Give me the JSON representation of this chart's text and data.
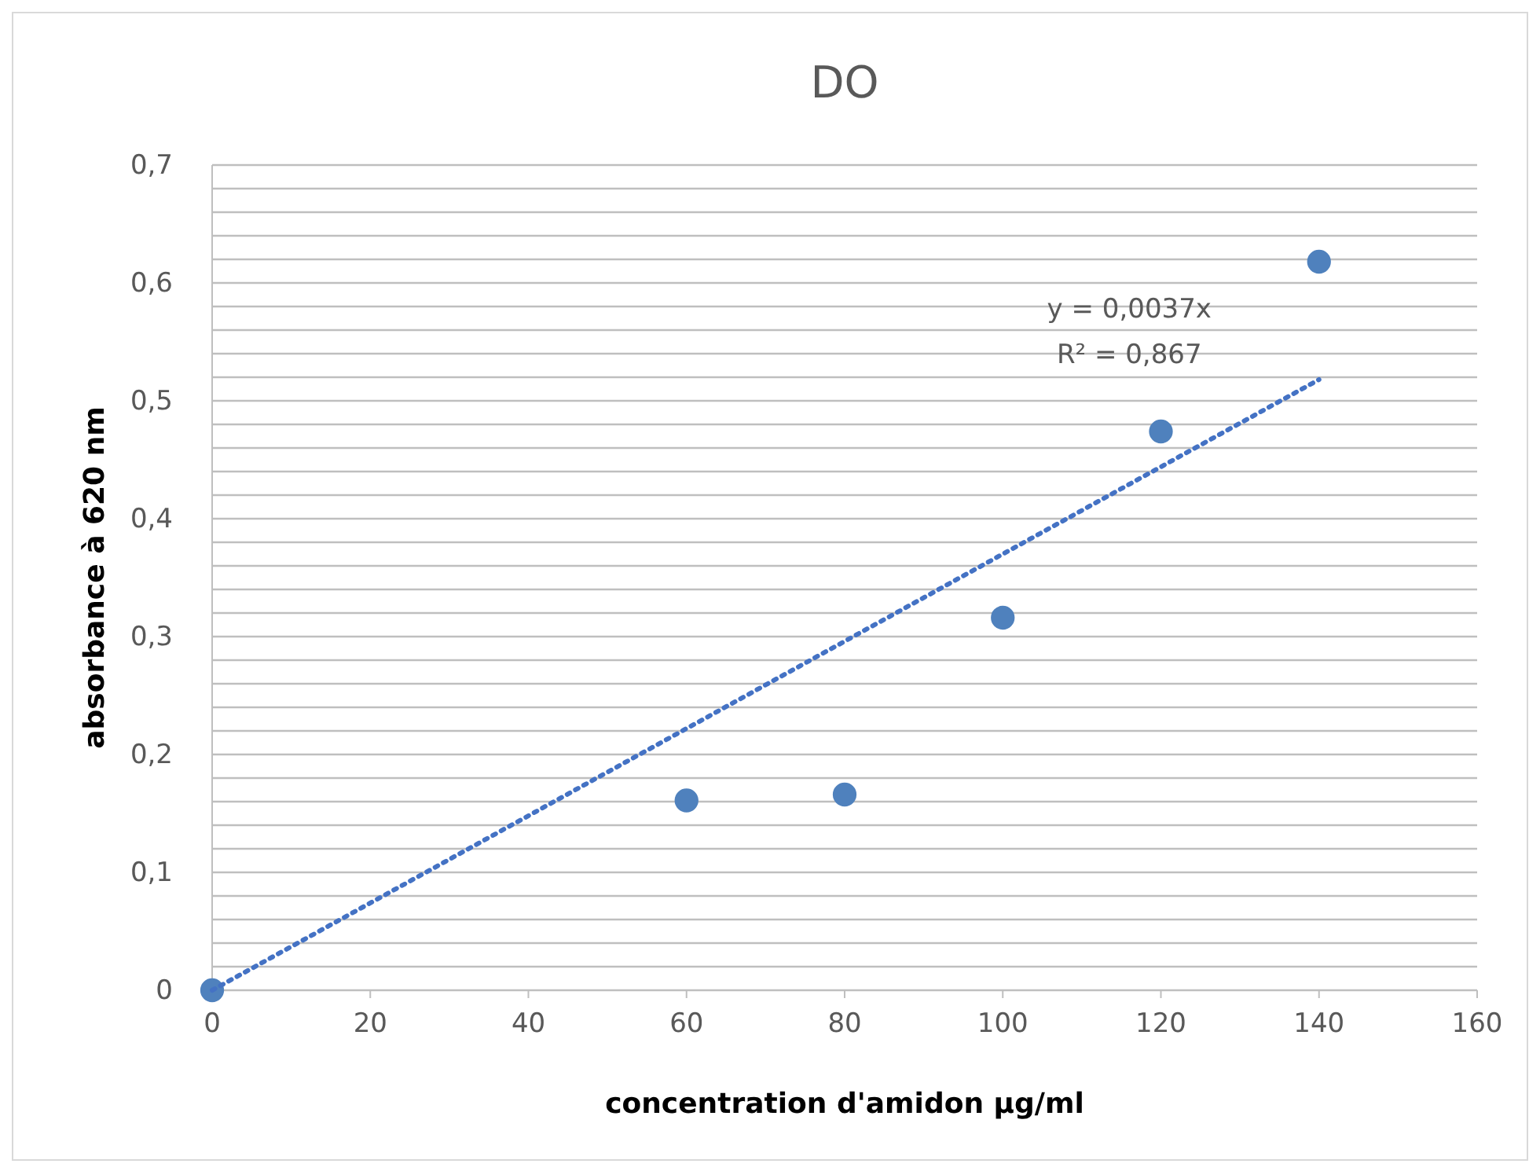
{
  "chart_data": {
    "type": "scatter",
    "title": "DO",
    "xlabel": "concentration d'amidon µg/ml",
    "ylabel": "absorbance à 620 nm",
    "xlim": [
      0,
      160
    ],
    "xticks": [
      0,
      20,
      40,
      60,
      80,
      100,
      120,
      140,
      160
    ],
    "ylim": [
      0,
      0.7
    ],
    "yticks": [
      0,
      {
        "value": 0.02,
        "label": null
      },
      {
        "value": 0.04,
        "label": null
      },
      {
        "value": 0.06,
        "label": null
      },
      {
        "value": 0.08,
        "label": null
      },
      {
        "value": 0.1,
        "label": "0,1"
      },
      {
        "value": 0.12,
        "label": null
      },
      {
        "value": 0.14,
        "label": null
      },
      {
        "value": 0.16,
        "label": null
      },
      {
        "value": 0.18,
        "label": null
      },
      {
        "value": 0.2,
        "label": "0,2"
      },
      {
        "value": 0.22,
        "label": null
      },
      {
        "value": 0.24,
        "label": null
      },
      {
        "value": 0.26,
        "label": null
      },
      {
        "value": 0.28,
        "label": null
      },
      {
        "value": 0.3,
        "label": "0,3"
      },
      {
        "value": 0.32,
        "label": null
      },
      {
        "value": 0.34,
        "label": null
      },
      {
        "value": 0.36,
        "label": null
      },
      {
        "value": 0.38,
        "label": null
      },
      {
        "value": 0.4,
        "label": "0,4"
      },
      {
        "value": 0.42,
        "label": null
      },
      {
        "value": 0.44,
        "label": null
      },
      {
        "value": 0.46,
        "label": null
      },
      {
        "value": 0.48,
        "label": null
      },
      {
        "value": 0.5,
        "label": "0,5"
      },
      {
        "value": 0.52,
        "label": null
      },
      {
        "value": 0.54,
        "label": null
      },
      {
        "value": 0.56,
        "label": null
      },
      {
        "value": 0.58,
        "label": null
      },
      {
        "value": 0.6,
        "label": "0,6"
      },
      {
        "value": 0.62,
        "label": null
      },
      {
        "value": 0.64,
        "label": null
      },
      {
        "value": 0.66,
        "label": null
      },
      {
        "value": 0.68,
        "label": null
      },
      {
        "value": 0.7,
        "label": "0,7"
      }
    ],
    "grid": "y",
    "series": [
      {
        "color": "#4f81bd",
        "marker": "circle",
        "x": [
          0,
          60,
          80,
          100,
          120,
          140
        ],
        "values": [
          0,
          0.161,
          0.166,
          0.316,
          0.474,
          0.618
        ]
      },
      {
        "type": "line",
        "color": "#4472c4",
        "line_style": "dotted",
        "marker": "none",
        "x": [
          0,
          140
        ],
        "values": [
          0,
          0.518
        ]
      }
    ],
    "annotations": [
      "y = 0,0037x",
      "R² = 0,867"
    ]
  }
}
